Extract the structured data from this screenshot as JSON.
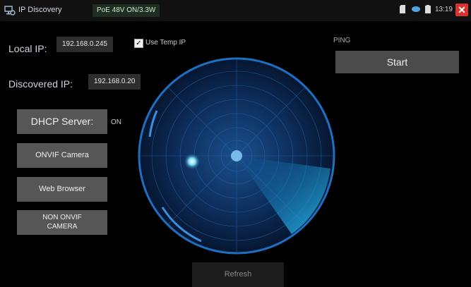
{
  "titlebar": {
    "title": "IP Discovery",
    "poe_status": "PoE 48V ON/3.3W",
    "time": "13:19"
  },
  "local_ip": {
    "label": "Local IP:",
    "value": "192.168.0.245"
  },
  "use_temp_ip": {
    "label": "Use Temp IP",
    "checked": true
  },
  "discovered_ip": {
    "label": "Discovered IP:",
    "value": "192.168.0.20"
  },
  "ping": {
    "label": "PING",
    "button": "Start"
  },
  "side_buttons": {
    "dhcp": "DHCP Server:",
    "dhcp_state": "ON",
    "onvif": "ONVIF Camera",
    "web": "Web Browser",
    "non_onvif": "NON ONVIF\nCAMERA"
  },
  "refresh": "Refresh",
  "colors": {
    "accent": "#29a8ff",
    "close": "#d8322f"
  }
}
